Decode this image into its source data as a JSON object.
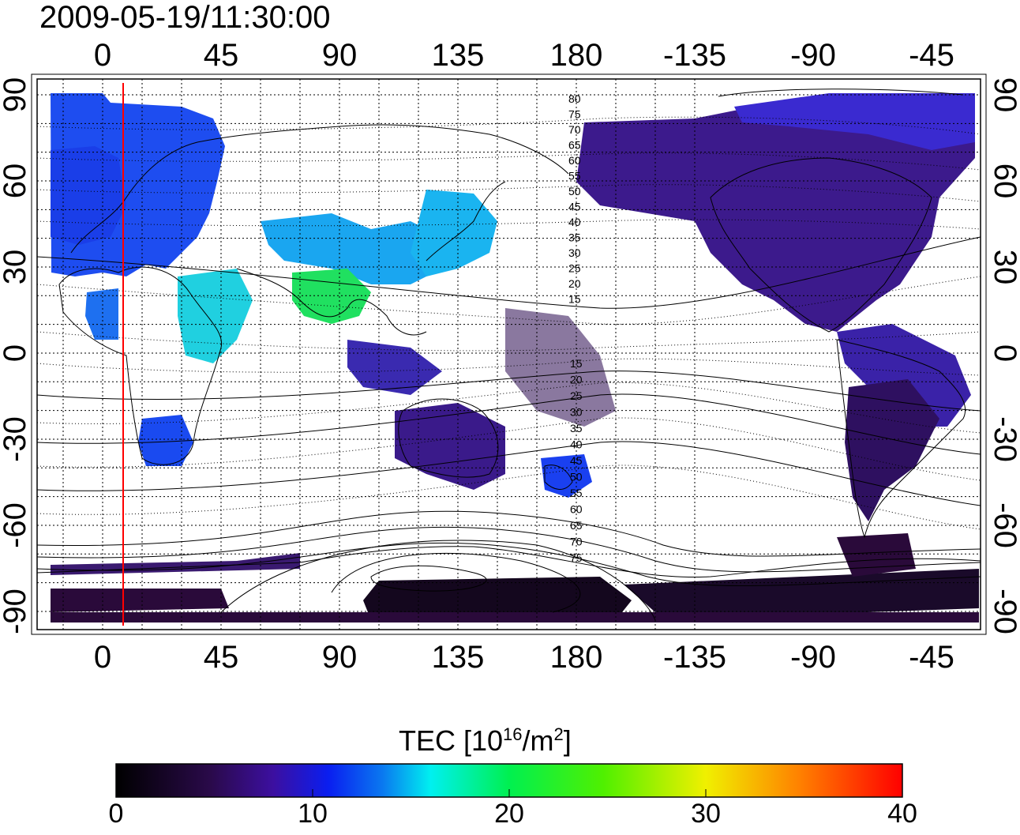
{
  "title": "2009-05-19/11:30:00",
  "map": {
    "top_axis_labels": [
      "0",
      "45",
      "90",
      "135",
      "180",
      "-135",
      "-90",
      "-45"
    ],
    "bottom_axis_labels": [
      "0",
      "45",
      "90",
      "135",
      "180",
      "-135",
      "-90",
      "-45"
    ],
    "left_axis_labels": [
      "90",
      "60",
      "30",
      "0",
      "-30",
      "-60",
      "-90"
    ],
    "right_axis_labels": [
      "90",
      "60",
      "30",
      "0",
      "-30",
      "-60",
      "-90"
    ],
    "contour_labels_north": [
      "80",
      "75",
      "70",
      "65",
      "60",
      "55",
      "50",
      "45",
      "40",
      "35",
      "30",
      "25",
      "20",
      "15"
    ],
    "contour_labels_south": [
      "15",
      "20",
      "25",
      "30",
      "35",
      "40",
      "45",
      "50",
      "55",
      "60",
      "65",
      "70",
      "75"
    ],
    "colors": {
      "grid": "#000000",
      "coastline": "#000000",
      "terminator_line": "#ff0000"
    }
  },
  "colorbar": {
    "title_main": "TEC  [10",
    "title_sup1": "16",
    "title_mid": "/m",
    "title_sup2": "2",
    "title_end": "]",
    "tick_labels": [
      "0",
      "10",
      "20",
      "30",
      "40"
    ],
    "range": [
      0,
      40
    ],
    "colormap": [
      "#000000",
      "#2a0a4a",
      "#3c0fa0",
      "#0a1ef0",
      "#0a7af0",
      "#00f0f0",
      "#00f050",
      "#50f000",
      "#f0f000",
      "#ff8000",
      "#ff0000"
    ]
  }
}
